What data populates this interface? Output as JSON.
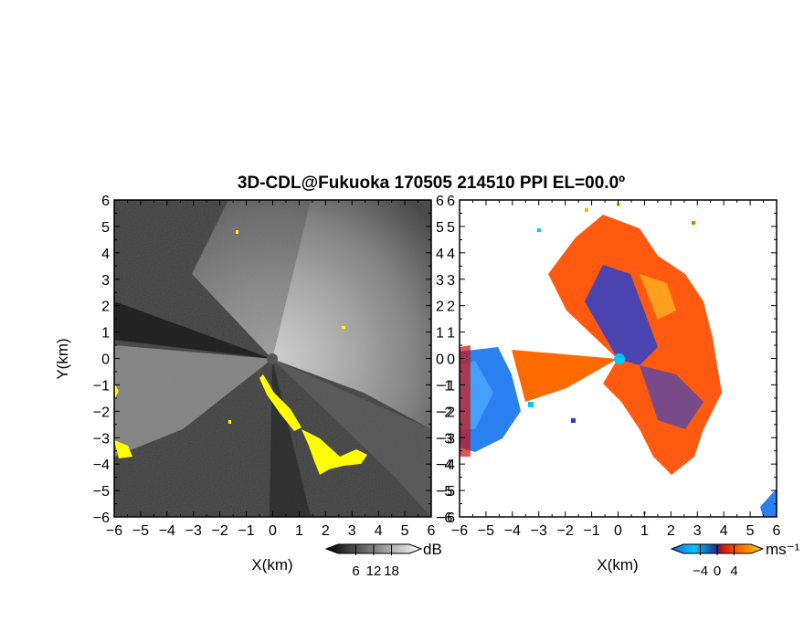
{
  "figure": {
    "title": "3D-CDL@Fukuoka 170505 214510 PPI EL=00.0º"
  },
  "chart_data": [
    {
      "type": "heatmap",
      "panel": "reflectivity",
      "xlabel": "X(km)",
      "ylabel": "Y(km)",
      "xlim": [
        -6,
        6
      ],
      "ylim": [
        -6,
        6
      ],
      "xticks": [
        "−6",
        "−5",
        "−4",
        "−3",
        "−2",
        "−1",
        "0",
        "1",
        "2",
        "3",
        "4",
        "5",
        "6"
      ],
      "yticks": [
        "6",
        "5",
        "4",
        "3",
        "2",
        "1",
        "0",
        "−1",
        "−2",
        "−3",
        "−4",
        "−5",
        "−6"
      ],
      "colormap": "grayscale",
      "background_color": "#2b2b2b",
      "highlight_color": "#ffff00",
      "colorbar": {
        "unit": "dB",
        "tick_values": [
          6,
          12,
          18
        ],
        "tick_labels": [
          "6",
          "12",
          "18"
        ],
        "range": [
          0,
          24
        ]
      }
    },
    {
      "type": "heatmap",
      "panel": "doppler_velocity",
      "xlabel": "X(km)",
      "xlim": [
        -6,
        6
      ],
      "ylim": [
        -6,
        6
      ],
      "xticks": [
        "−6",
        "−5",
        "−4",
        "−3",
        "−2",
        "−1",
        "0",
        "1",
        "2",
        "3",
        "4",
        "5",
        "6"
      ],
      "yticks": [
        "6",
        "5",
        "4",
        "3",
        "2",
        "1",
        "0",
        "−1",
        "−2",
        "−3",
        "−4",
        "−5",
        "−6"
      ],
      "colormap": [
        "#1e5be6",
        "#00c8ff",
        "#ff6a00",
        "#ffd000"
      ],
      "colorbar": {
        "unit": "ms⁻¹",
        "tick_values": [
          -4,
          0,
          4
        ],
        "tick_labels": [
          "−4",
          "0",
          "4"
        ],
        "range": [
          -8,
          8
        ]
      }
    }
  ]
}
